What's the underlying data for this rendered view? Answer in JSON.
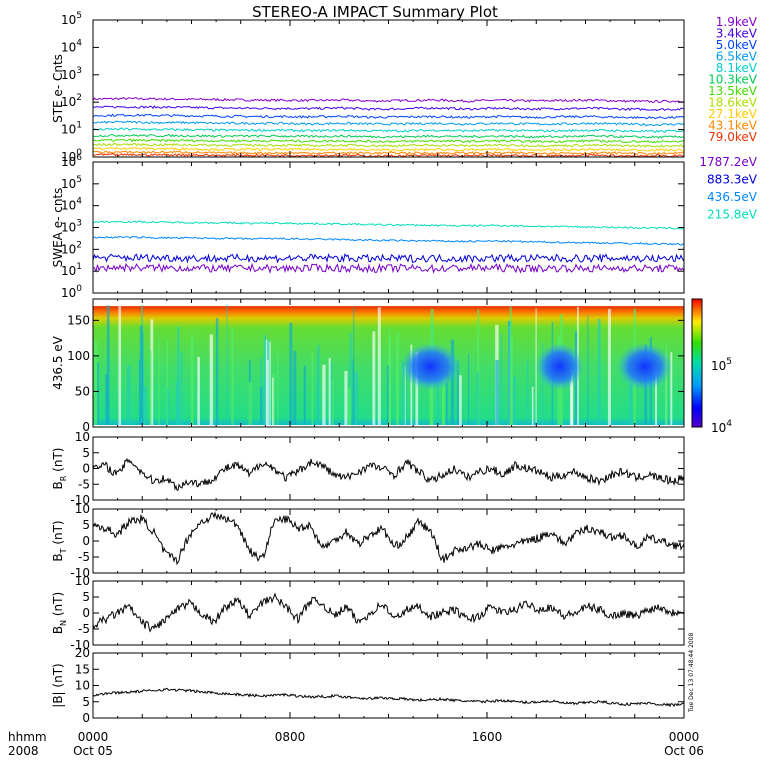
{
  "title": "STEREO-A IMPACT Summary Plot",
  "colors": {
    "ste": [
      "#8800cc",
      "#4400ee",
      "#0044ff",
      "#0099ee",
      "#00cccc",
      "#00cc55",
      "#44dd00",
      "#aadd00",
      "#ffcc00",
      "#ff8800",
      "#ee3300"
    ],
    "swea": [
      "#7700cc",
      "#0000dd",
      "#0088ff",
      "#00ddbb"
    ]
  },
  "chart_data": [
    {
      "type": "line",
      "ylabel": "STE e- Cnts",
      "yscale": "log",
      "ylim": [
        1,
        100000
      ],
      "yticks": [
        "10^0",
        "10^1",
        "10^2",
        "10^3",
        "10^4",
        "10^5"
      ],
      "series": [
        {
          "name": "1.9keV",
          "values": [
            130,
            135,
            132,
            128,
            125,
            120,
            118,
            115,
            120,
            110,
            115,
            120,
            110,
            118,
            112,
            115,
            120,
            110,
            105,
            112
          ]
        },
        {
          "name": "3.4keV",
          "values": [
            65,
            68,
            66,
            64,
            62,
            60,
            60,
            58,
            62,
            55,
            58,
            62,
            56,
            60,
            57,
            58,
            60,
            56,
            54,
            56
          ]
        },
        {
          "name": "5.0keV",
          "values": [
            32,
            34,
            33,
            32,
            31,
            30,
            30,
            29,
            31,
            28,
            29,
            30,
            28,
            30,
            28,
            29,
            30,
            28,
            27,
            28
          ]
        },
        {
          "name": "6.5keV",
          "values": [
            18,
            19,
            18,
            18,
            17,
            17,
            17,
            16,
            17,
            16,
            16,
            17,
            16,
            17,
            16,
            16,
            17,
            16,
            15,
            16
          ]
        },
        {
          "name": "8.1keV",
          "values": [
            10,
            10.5,
            10,
            10,
            9.5,
            9.5,
            9.5,
            9,
            9.5,
            9,
            9,
            9.5,
            9,
            9.5,
            9,
            9,
            9.5,
            9,
            8.5,
            9
          ]
        },
        {
          "name": "10.3keV",
          "values": [
            6,
            6.2,
            6,
            6,
            5.8,
            5.8,
            5.8,
            5.6,
            5.8,
            5.5,
            5.5,
            5.8,
            5.5,
            5.8,
            5.5,
            5.5,
            5.8,
            5.5,
            5.3,
            5.5
          ]
        },
        {
          "name": "13.5keV",
          "values": [
            4,
            4.1,
            4,
            4,
            3.9,
            3.9,
            3.9,
            3.8,
            3.9,
            3.7,
            3.7,
            3.9,
            3.7,
            3.9,
            3.7,
            3.7,
            3.9,
            3.7,
            3.6,
            3.7
          ]
        },
        {
          "name": "18.6keV",
          "values": [
            2.8,
            2.9,
            2.8,
            2.8,
            2.7,
            2.7,
            2.7,
            2.6,
            2.7,
            2.6,
            2.6,
            2.7,
            2.6,
            2.7,
            2.6,
            2.6,
            2.7,
            2.6,
            2.5,
            2.6
          ]
        },
        {
          "name": "27.1keV",
          "values": [
            2,
            2.1,
            2,
            2,
            1.9,
            1.9,
            1.9,
            1.9,
            1.9,
            1.8,
            1.8,
            1.9,
            1.8,
            1.9,
            1.8,
            1.8,
            1.9,
            1.8,
            1.8,
            1.8
          ]
        },
        {
          "name": "43.1keV",
          "values": [
            1.5,
            1.5,
            1.5,
            1.5,
            1.4,
            1.4,
            1.4,
            1.4,
            1.4,
            1.4,
            1.4,
            1.4,
            1.4,
            1.4,
            1.4,
            1.4,
            1.4,
            1.4,
            1.3,
            1.4
          ]
        },
        {
          "name": "79.0keV",
          "values": [
            1.2,
            1.2,
            1.2,
            1.2,
            1.15,
            1.15,
            1.15,
            1.15,
            1.15,
            1.1,
            1.1,
            1.15,
            1.1,
            1.15,
            1.1,
            1.1,
            1.15,
            1.1,
            1.1,
            1.1
          ]
        }
      ]
    },
    {
      "type": "line",
      "ylabel": "SWEA e- cnts",
      "yscale": "log",
      "ylim": [
        1,
        1000000
      ],
      "yticks": [
        "10^0",
        "10^1",
        "10^2",
        "10^3",
        "10^4",
        "10^5",
        "10^6"
      ],
      "series": [
        {
          "name": "1787.2eV",
          "values": [
            14,
            15,
            14,
            14,
            13,
            14,
            13,
            14,
            14,
            13,
            14,
            13,
            14,
            14,
            13,
            14,
            13,
            14,
            13,
            14
          ]
        },
        {
          "name": "883.3eV",
          "values": [
            40,
            42,
            41,
            40,
            38,
            40,
            39,
            40,
            40,
            37,
            38,
            39,
            38,
            40,
            38,
            39,
            38,
            40,
            37,
            38
          ]
        },
        {
          "name": "436.5eV",
          "values": [
            350,
            360,
            340,
            330,
            320,
            300,
            310,
            290,
            280,
            260,
            250,
            240,
            230,
            240,
            220,
            210,
            200,
            190,
            180,
            170
          ]
        },
        {
          "name": "215.8eV",
          "values": [
            1800,
            1850,
            1750,
            1700,
            1650,
            1550,
            1600,
            1500,
            1450,
            1350,
            1300,
            1250,
            1200,
            1250,
            1150,
            1100,
            1050,
            1000,
            950,
            900
          ]
        }
      ]
    },
    {
      "type": "heatmap",
      "ylabel": "436.5 eV",
      "ylim": [
        0,
        180
      ],
      "yticks": [
        "0",
        "50",
        "100",
        "150"
      ],
      "colorbar": {
        "scale": "log",
        "labels": [
          "10^4",
          "10^5"
        ]
      },
      "low_patches": [
        {
          "t_hours": [
            12.8,
            14.6
          ],
          "pitch": [
            60,
            110
          ]
        },
        {
          "t_hours": [
            18.3,
            19.6
          ],
          "pitch": [
            60,
            110
          ]
        },
        {
          "t_hours": [
            21.6,
            23.2
          ],
          "pitch": [
            60,
            110
          ]
        }
      ]
    },
    {
      "type": "line",
      "ylabel_main": "B",
      "ylabel_sub": "R",
      "ylabel_unit": "(nT)",
      "ylim": [
        -10,
        10
      ],
      "yticks": [
        "-10",
        "-5",
        "0",
        "5",
        "10"
      ],
      "values": [
        0,
        1,
        -2,
        3,
        -1,
        -4,
        -3,
        -6,
        -4,
        -5,
        -3,
        0,
        1,
        -2,
        2,
        0,
        -3,
        -1,
        2,
        1,
        -2,
        -3,
        -1,
        1,
        0,
        -2,
        2,
        -1,
        -4,
        -2,
        0,
        -3,
        -1,
        0,
        -2,
        1,
        0,
        -1,
        -3,
        -2,
        -1,
        -3,
        -4,
        -2,
        -1,
        -3,
        -2,
        -3,
        -4,
        -3
      ]
    },
    {
      "type": "line",
      "ylabel_main": "B",
      "ylabel_sub": "T",
      "ylabel_unit": "(nT)",
      "ylim": [
        -10,
        10
      ],
      "yticks": [
        "-10",
        "-5",
        "0",
        "5",
        "10"
      ],
      "values": [
        5,
        4,
        2,
        6,
        7,
        3,
        -4,
        -6,
        2,
        6,
        8,
        7,
        5,
        -3,
        -6,
        6,
        7,
        4,
        5,
        -2,
        0,
        3,
        -1,
        2,
        4,
        -2,
        1,
        6,
        3,
        -6,
        -3,
        -2,
        -1,
        -3,
        -2,
        -1,
        0,
        1,
        3,
        -1,
        2,
        4,
        3,
        1,
        2,
        -2,
        1,
        0,
        -1,
        -2
      ]
    },
    {
      "type": "line",
      "ylabel_main": "B",
      "ylabel_sub": "N",
      "ylabel_unit": "(nT)",
      "ylim": [
        -10,
        10
      ],
      "yticks": [
        "-10",
        "-5",
        "0",
        "5",
        "10"
      ],
      "values": [
        -4,
        -2,
        0,
        2,
        -3,
        -5,
        -2,
        1,
        3,
        0,
        -3,
        2,
        4,
        -1,
        3,
        5,
        2,
        -2,
        4,
        3,
        -1,
        2,
        -3,
        0,
        3,
        -2,
        1,
        2,
        -1,
        0,
        1,
        -2,
        -1,
        2,
        0,
        1,
        3,
        1,
        2,
        -1,
        0,
        2,
        1,
        -1,
        0,
        -1,
        1,
        2,
        0,
        1
      ]
    },
    {
      "type": "line",
      "ylabel_main": "|B|",
      "ylabel_unit": "(nT)",
      "ylim": [
        0,
        20
      ],
      "yticks": [
        "0",
        "5",
        "10",
        "15",
        "20"
      ],
      "values": [
        7,
        7.5,
        7.8,
        8,
        8.2,
        8.5,
        8.8,
        8.6,
        8.4,
        8,
        7.8,
        7.5,
        7.2,
        7,
        6.8,
        7,
        7.2,
        6.8,
        6.5,
        6.6,
        6.8,
        6.5,
        6.2,
        6,
        6.2,
        6,
        5.8,
        5.5,
        5.6,
        5.8,
        5.4,
        5.2,
        5,
        5.2,
        5.4,
        5,
        4.8,
        5,
        5.2,
        4.6,
        4.4,
        4.8,
        5,
        4.6,
        4.2,
        4.4,
        4.6,
        4.2,
        4,
        4.2
      ]
    }
  ],
  "xaxis": {
    "row1": [
      "0000",
      "0800",
      "1600",
      "0000"
    ],
    "row2": [
      "Oct 05",
      "",
      "",
      "Oct 06"
    ],
    "label1": "hhmm",
    "label2": "2008",
    "range_hours": [
      0,
      24
    ]
  },
  "timestamp": "Tue Dec 13 07:48:44 2008"
}
